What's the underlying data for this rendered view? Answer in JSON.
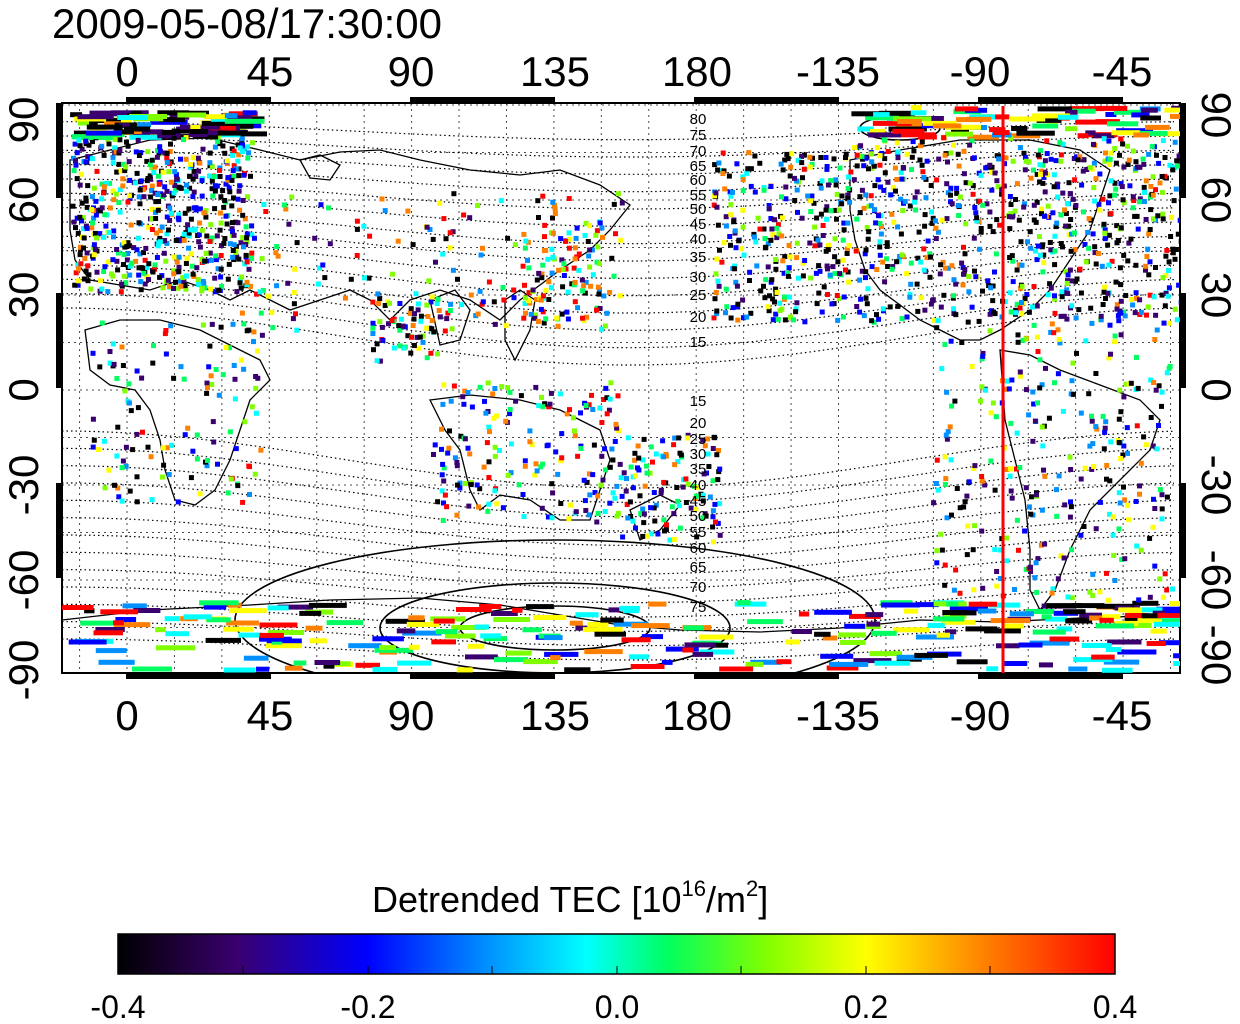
{
  "title": "2009-05-08/17:30:00",
  "map": {
    "top_lon_ticks": [
      "0",
      "45",
      "90",
      "135",
      "180",
      "-135",
      "-90",
      "-45"
    ],
    "bottom_lon_ticks": [
      "0",
      "45",
      "90",
      "135",
      "180",
      "-135",
      "-90",
      "-45"
    ],
    "left_lat_ticks": [
      "90",
      "60",
      "30",
      "0",
      "-30",
      "-60",
      "-90"
    ],
    "right_lat_ticks": [
      "90",
      "60",
      "30",
      "0",
      "-30",
      "-60",
      "-90"
    ],
    "contour_labels_north": [
      "80",
      "75",
      "70",
      "65",
      "60",
      "55",
      "50",
      "45",
      "40",
      "35",
      "30",
      "25",
      "20",
      "15"
    ],
    "contour_labels_south": [
      "15",
      "20",
      "25",
      "30",
      "35",
      "40",
      "45",
      "50",
      "55",
      "60",
      "65",
      "70",
      "75"
    ],
    "marker_line_color": "#ff0000",
    "marker_line_lon": -83
  },
  "colorbar": {
    "title_main": "Detrended TEC  [10",
    "title_sup1": "16",
    "title_mid": "/m",
    "title_sup2": "2",
    "title_end": "]",
    "tick_labels": [
      "-0.4",
      "-0.2",
      "0.0",
      "0.2",
      "0.4"
    ],
    "min": -0.4,
    "max": 0.4
  },
  "colors": {
    "stops": [
      "#000000",
      "#3a0070",
      "#0000ff",
      "#0090ff",
      "#00ffff",
      "#00ff60",
      "#80ff00",
      "#ffff00",
      "#ff8000",
      "#ff0000"
    ]
  }
}
